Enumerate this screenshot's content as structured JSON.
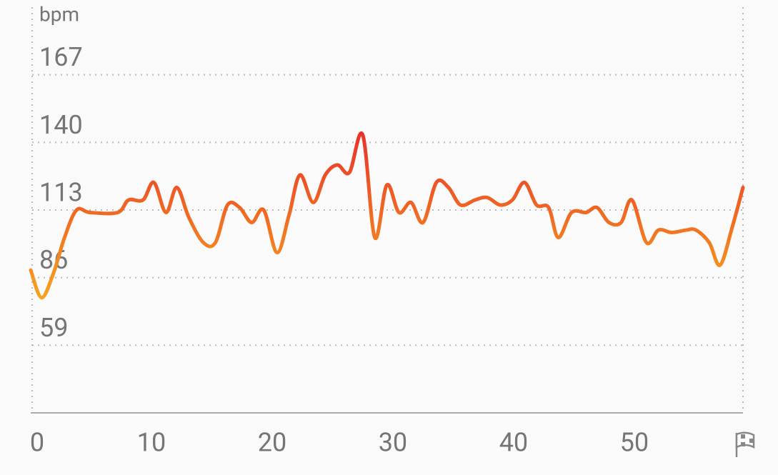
{
  "chart_data": {
    "type": "line",
    "y_label": "bpm",
    "x": [
      0,
      0.9,
      1.9,
      2.8,
      3.8,
      4.9,
      7.2,
      8.1,
      9.3,
      10.2,
      11.2,
      12.1,
      13.1,
      14.3,
      15.3,
      16.3,
      17.3,
      18.3,
      19.3,
      20.4,
      21.4,
      22.3,
      23.4,
      24.4,
      25.4,
      26.4,
      27.5,
      28.5,
      29.5,
      30.5,
      31.5,
      32.5,
      33.6,
      34.6,
      35.6,
      36.8,
      37.8,
      38.9,
      39.9,
      40.9,
      41.9,
      42.9,
      43.7,
      44.8,
      46.0,
      46.9,
      47.9,
      48.9,
      49.8,
      51.0,
      52.0,
      53.1,
      54.3,
      55.1,
      56.2,
      57.1,
      58.1,
      59
    ],
    "values": [
      89,
      78,
      88,
      102,
      113,
      112,
      112,
      117,
      117,
      124,
      112,
      122,
      110,
      100,
      100,
      115,
      114,
      108,
      113,
      96,
      111,
      127,
      116,
      127,
      131,
      128,
      143,
      102,
      123,
      112,
      116,
      108,
      124,
      122,
      115,
      117,
      118,
      115,
      117,
      124,
      115,
      114,
      102,
      112,
      112,
      114,
      108,
      108,
      117,
      100,
      105,
      104,
      105,
      105,
      100,
      91,
      106,
      122
    ],
    "gradient": [
      "#f7a41d",
      "#e8302a"
    ],
    "xlim": [
      0,
      59
    ],
    "ylim": [
      32,
      194
    ],
    "xticks": [
      0,
      10,
      20,
      30,
      40,
      50
    ],
    "yticks": [
      59,
      86,
      113,
      140,
      167
    ],
    "grid": true
  }
}
